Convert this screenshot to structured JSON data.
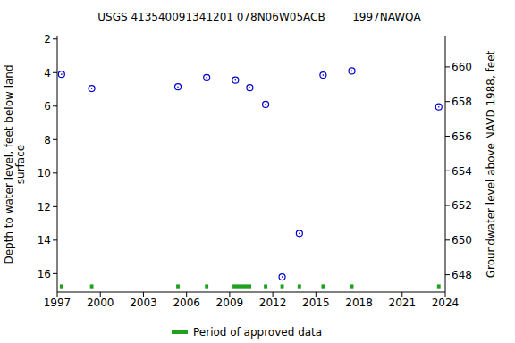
{
  "chart_data": {
    "type": "scatter",
    "title": "USGS 413540091341201 078N06W05ACB        1997NAWQA",
    "y_label": "Depth to water level, feet below land\nsurface",
    "y2_label": "Groundwater level above NAVD 1988, feet",
    "x": [
      1997.3,
      1999.4,
      2005.4,
      2007.4,
      2009.4,
      2010.4,
      2011.5,
      2012.65,
      2013.85,
      2015.5,
      2017.5,
      2023.55
    ],
    "values": [
      4.1,
      4.95,
      4.85,
      4.3,
      4.45,
      4.9,
      5.9,
      16.2,
      13.6,
      4.15,
      3.9,
      6.05
    ],
    "color": "#0000cc",
    "marker": "circle",
    "xlim": [
      1997,
      2024
    ],
    "xticks": [
      1997,
      2000,
      2003,
      2006,
      2009,
      2012,
      2015,
      2018,
      2021,
      2024
    ],
    "ylim": [
      1.8,
      17.1
    ],
    "yticks": [
      2,
      4,
      6,
      8,
      10,
      12,
      14,
      16
    ],
    "y2lim": [
      647,
      661.8
    ],
    "y2ticks": [
      648,
      650,
      652,
      654,
      656,
      658,
      660
    ],
    "approved_periods": [
      [
        1997.18,
        1997.42
      ],
      [
        1999.28,
        1999.52
      ],
      [
        2005.28,
        2005.52
      ],
      [
        2007.28,
        2007.52
      ],
      [
        2009.2,
        2010.5
      ],
      [
        2011.38,
        2011.62
      ],
      [
        2012.53,
        2012.77
      ],
      [
        2013.73,
        2013.97
      ],
      [
        2015.38,
        2015.62
      ],
      [
        2017.38,
        2017.62
      ],
      [
        2023.43,
        2023.67
      ]
    ],
    "approved_color": "#1ea11e",
    "legend_label": "Period of approved data",
    "grid": false
  }
}
